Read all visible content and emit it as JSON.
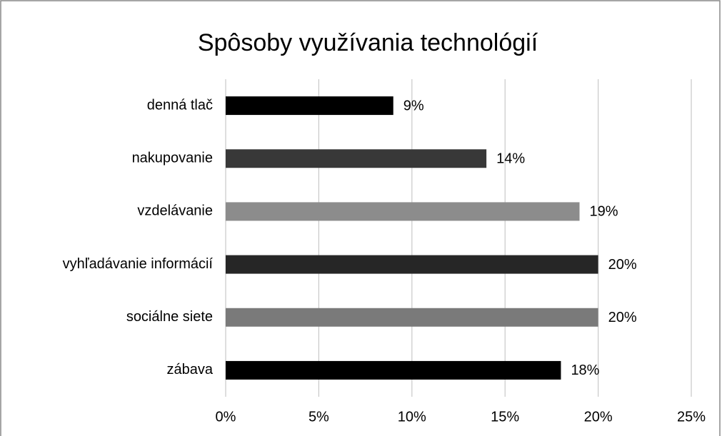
{
  "chart_data": {
    "type": "bar",
    "orientation": "horizontal",
    "title": "Spôsoby využívania technológií",
    "categories": [
      "denná tlač",
      "nakupovanie",
      "vzdelávanie",
      "vyhľadávanie informácií",
      "sociálne siete",
      "zábava"
    ],
    "values": [
      9,
      14,
      19,
      20,
      20,
      18
    ],
    "value_labels": [
      "9%",
      "14%",
      "19%",
      "20%",
      "20%",
      "18%"
    ],
    "colors": [
      "#000000",
      "#383838",
      "#8c8c8c",
      "#262626",
      "#7a7a7a",
      "#000000"
    ],
    "xlim": [
      0,
      25
    ],
    "xticks": [
      {
        "value": 0,
        "label": "0%"
      },
      {
        "value": 5,
        "label": "5%"
      },
      {
        "value": 10,
        "label": "10%"
      },
      {
        "value": 15,
        "label": "15%"
      },
      {
        "value": 20,
        "label": "20%"
      },
      {
        "value": 25,
        "label": "25%"
      }
    ],
    "grid": true
  }
}
